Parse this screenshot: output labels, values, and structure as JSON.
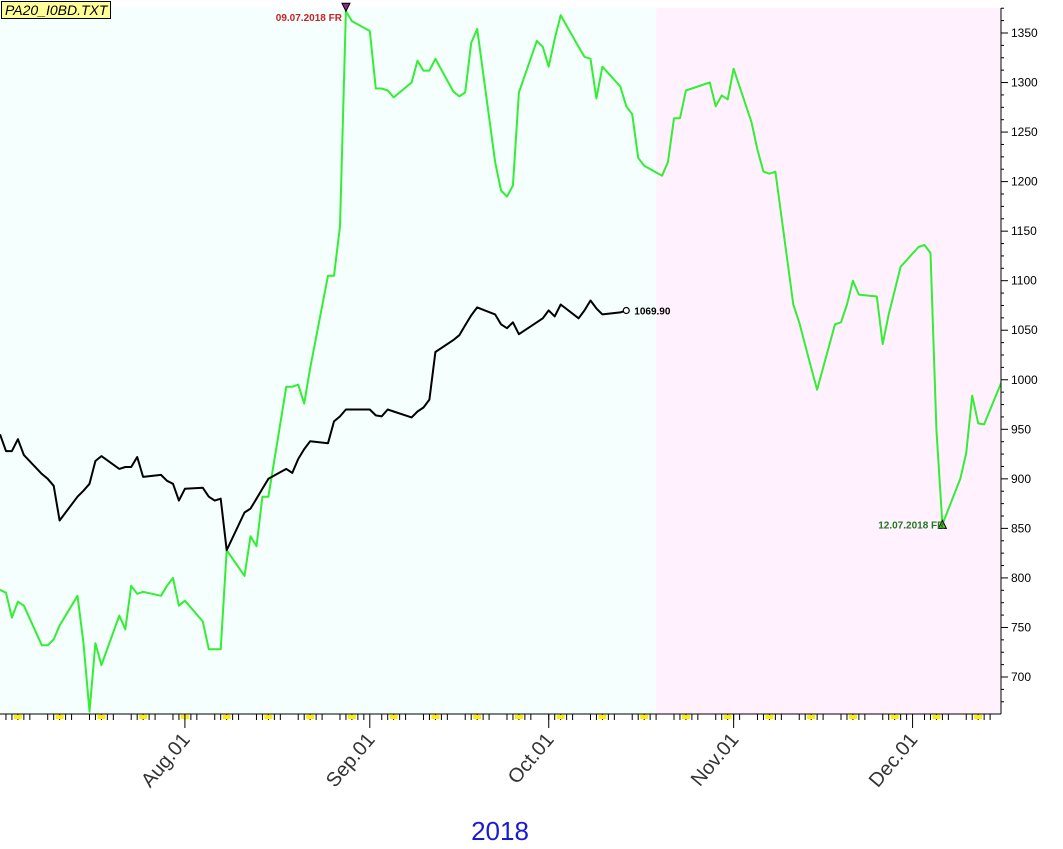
{
  "file_label": "PA20_I0BD.TXT",
  "year_label": "2018",
  "colors": {
    "green_series": "#33ee33",
    "black_series": "#000000",
    "shade_1": "#f4fffe",
    "shade_2": "#fff2fe",
    "marker_high": "#cc2222",
    "marker_low": "#227722",
    "year_text": "#1a1ad4",
    "tick_yellow": "#ffee00"
  },
  "chart_data": {
    "type": "line",
    "title": "",
    "xlabel": "2018",
    "ylabel": "",
    "ylim": [
      660,
      1375
    ],
    "y_ticks": [
      700,
      750,
      800,
      850,
      900,
      950,
      1000,
      1050,
      1100,
      1150,
      1200,
      1250,
      1300,
      1350
    ],
    "x_range": [
      "2018-07-01",
      "2018-12-17"
    ],
    "x_ticks": [
      {
        "date": "2018-08-01",
        "label": "Aug.01"
      },
      {
        "date": "2018-09-01",
        "label": "Sep.01"
      },
      {
        "date": "2018-10-01",
        "label": "Oct.01"
      },
      {
        "date": "2018-11-01",
        "label": "Nov.01"
      },
      {
        "date": "2018-12-01",
        "label": "Dec.01"
      }
    ],
    "shaded_periods": [
      {
        "start": "2018-07-01",
        "end": "2018-10-19",
        "color": "#f4fffe"
      },
      {
        "start": "2018-10-19",
        "end": "2018-12-17",
        "color": "#fff2fe"
      }
    ],
    "series": [
      {
        "color": "#33ee33",
        "points": [
          [
            "2018-07-01",
            788
          ],
          [
            "2018-07-02",
            785
          ],
          [
            "2018-07-03",
            760
          ],
          [
            "2018-07-04",
            776
          ],
          [
            "2018-07-05",
            772
          ],
          [
            "2018-07-08",
            732
          ],
          [
            "2018-07-09",
            732
          ],
          [
            "2018-07-10",
            738
          ],
          [
            "2018-07-11",
            752
          ],
          [
            "2018-07-14",
            782
          ],
          [
            "2018-07-15",
            734
          ],
          [
            "2018-07-16",
            665
          ],
          [
            "2018-07-17",
            734
          ],
          [
            "2018-07-18",
            712
          ],
          [
            "2018-07-21",
            762
          ],
          [
            "2018-07-22",
            748
          ],
          [
            "2018-07-23",
            792
          ],
          [
            "2018-07-24",
            784
          ],
          [
            "2018-07-25",
            786
          ],
          [
            "2018-07-28",
            782
          ],
          [
            "2018-07-29",
            792
          ],
          [
            "2018-07-30",
            800
          ],
          [
            "2018-07-31",
            772
          ],
          [
            "2018-08-01",
            777
          ],
          [
            "2018-08-04",
            756
          ],
          [
            "2018-08-05",
            728
          ],
          [
            "2018-08-06",
            728
          ],
          [
            "2018-08-07",
            728
          ],
          [
            "2018-08-08",
            828
          ],
          [
            "2018-08-11",
            802
          ],
          [
            "2018-08-12",
            842
          ],
          [
            "2018-08-13",
            832
          ],
          [
            "2018-08-14",
            882
          ],
          [
            "2018-08-15",
            882
          ],
          [
            "2018-08-18",
            993
          ],
          [
            "2018-08-19",
            993
          ],
          [
            "2018-08-20",
            995
          ],
          [
            "2018-08-21",
            976
          ],
          [
            "2018-08-22",
            1012
          ],
          [
            "2018-08-25",
            1105
          ],
          [
            "2018-08-26",
            1105
          ],
          [
            "2018-08-27",
            1155
          ],
          [
            "2018-08-28",
            1372
          ],
          [
            "2018-08-29",
            1362
          ],
          [
            "2018-09-01",
            1352
          ],
          [
            "2018-09-02",
            1294
          ],
          [
            "2018-09-03",
            1294
          ],
          [
            "2018-09-04",
            1292
          ],
          [
            "2018-09-05",
            1285
          ],
          [
            "2018-09-08",
            1300
          ],
          [
            "2018-09-09",
            1322
          ],
          [
            "2018-09-10",
            1312
          ],
          [
            "2018-09-11",
            1312
          ],
          [
            "2018-09-12",
            1324
          ],
          [
            "2018-09-15",
            1291
          ],
          [
            "2018-09-16",
            1286
          ],
          [
            "2018-09-17",
            1290
          ],
          [
            "2018-09-18",
            1340
          ],
          [
            "2018-09-19",
            1354
          ],
          [
            "2018-09-22",
            1220
          ],
          [
            "2018-09-23",
            1191
          ],
          [
            "2018-09-24",
            1185
          ],
          [
            "2018-09-25",
            1196
          ],
          [
            "2018-09-26",
            1290
          ],
          [
            "2018-09-29",
            1342
          ],
          [
            "2018-09-30",
            1336
          ],
          [
            "2018-10-01",
            1316
          ],
          [
            "2018-10-02",
            1344
          ],
          [
            "2018-10-03",
            1368
          ],
          [
            "2018-10-06",
            1336
          ],
          [
            "2018-10-07",
            1326
          ],
          [
            "2018-10-08",
            1324
          ],
          [
            "2018-10-09",
            1284
          ],
          [
            "2018-10-10",
            1316
          ],
          [
            "2018-10-13",
            1296
          ],
          [
            "2018-10-14",
            1276
          ],
          [
            "2018-10-15",
            1268
          ],
          [
            "2018-10-16",
            1224
          ],
          [
            "2018-10-17",
            1216
          ],
          [
            "2018-10-20",
            1206
          ],
          [
            "2018-10-21",
            1220
          ],
          [
            "2018-10-22",
            1264
          ],
          [
            "2018-10-23",
            1264
          ],
          [
            "2018-10-24",
            1292
          ],
          [
            "2018-10-27",
            1298
          ],
          [
            "2018-10-28",
            1300
          ],
          [
            "2018-10-29",
            1276
          ],
          [
            "2018-10-30",
            1287
          ],
          [
            "2018-10-31",
            1283
          ],
          [
            "2018-11-01",
            1314
          ],
          [
            "2018-11-04",
            1260
          ],
          [
            "2018-11-05",
            1232
          ],
          [
            "2018-11-06",
            1210
          ],
          [
            "2018-11-07",
            1208
          ],
          [
            "2018-11-08",
            1210
          ],
          [
            "2018-11-11",
            1076
          ],
          [
            "2018-11-12",
            1058
          ],
          [
            "2018-11-13",
            1035
          ],
          [
            "2018-11-14",
            1012
          ],
          [
            "2018-11-15",
            990
          ],
          [
            "2018-11-18",
            1056
          ],
          [
            "2018-11-19",
            1058
          ],
          [
            "2018-11-20",
            1076
          ],
          [
            "2018-11-21",
            1100
          ],
          [
            "2018-11-22",
            1086
          ],
          [
            "2018-11-25",
            1084
          ],
          [
            "2018-11-26",
            1036
          ],
          [
            "2018-11-27",
            1066
          ],
          [
            "2018-11-28",
            1090
          ],
          [
            "2018-11-29",
            1114
          ],
          [
            "2018-12-02",
            1134
          ],
          [
            "2018-12-03",
            1136
          ],
          [
            "2018-12-04",
            1128
          ],
          [
            "2018-12-05",
            950
          ],
          [
            "2018-12-06",
            854
          ],
          [
            "2018-12-09",
            900
          ],
          [
            "2018-12-10",
            926
          ],
          [
            "2018-12-11",
            984
          ],
          [
            "2018-12-12",
            956
          ],
          [
            "2018-12-13",
            955
          ],
          [
            "2018-12-16",
            999
          ],
          [
            "2018-12-17",
            1044
          ]
        ]
      },
      {
        "color": "#000000",
        "points": [
          [
            "2018-07-01",
            945
          ],
          [
            "2018-07-02",
            928
          ],
          [
            "2018-07-03",
            928
          ],
          [
            "2018-07-04",
            940
          ],
          [
            "2018-07-05",
            924
          ],
          [
            "2018-07-08",
            905
          ],
          [
            "2018-07-09",
            900
          ],
          [
            "2018-07-10",
            893
          ],
          [
            "2018-07-11",
            858
          ],
          [
            "2018-07-14",
            882
          ],
          [
            "2018-07-15",
            888
          ],
          [
            "2018-07-16",
            895
          ],
          [
            "2018-07-17",
            918
          ],
          [
            "2018-07-18",
            923
          ],
          [
            "2018-07-21",
            910
          ],
          [
            "2018-07-22",
            912
          ],
          [
            "2018-07-23",
            912
          ],
          [
            "2018-07-24",
            922
          ],
          [
            "2018-07-25",
            902
          ],
          [
            "2018-07-28",
            904
          ],
          [
            "2018-07-29",
            898
          ],
          [
            "2018-07-30",
            895
          ],
          [
            "2018-07-31",
            878
          ],
          [
            "2018-08-01",
            890
          ],
          [
            "2018-08-04",
            891
          ],
          [
            "2018-08-05",
            882
          ],
          [
            "2018-08-06",
            878
          ],
          [
            "2018-08-07",
            880
          ],
          [
            "2018-08-08",
            828
          ],
          [
            "2018-08-11",
            866
          ],
          [
            "2018-08-12",
            870
          ],
          [
            "2018-08-13",
            880
          ],
          [
            "2018-08-14",
            890
          ],
          [
            "2018-08-15",
            900
          ],
          [
            "2018-08-18",
            910
          ],
          [
            "2018-08-19",
            906
          ],
          [
            "2018-08-20",
            920
          ],
          [
            "2018-08-21",
            930
          ],
          [
            "2018-08-22",
            938
          ],
          [
            "2018-08-25",
            936
          ],
          [
            "2018-08-26",
            958
          ],
          [
            "2018-08-27",
            963
          ],
          [
            "2018-08-28",
            970
          ],
          [
            "2018-08-29",
            970
          ],
          [
            "2018-09-01",
            970
          ],
          [
            "2018-09-02",
            964
          ],
          [
            "2018-09-03",
            963
          ],
          [
            "2018-09-04",
            970
          ],
          [
            "2018-09-05",
            968
          ],
          [
            "2018-09-08",
            962
          ],
          [
            "2018-09-09",
            968
          ],
          [
            "2018-09-10",
            972
          ],
          [
            "2018-09-11",
            980
          ],
          [
            "2018-09-12",
            1028
          ],
          [
            "2018-09-15",
            1040
          ],
          [
            "2018-09-16",
            1045
          ],
          [
            "2018-09-17",
            1055
          ],
          [
            "2018-09-18",
            1065
          ],
          [
            "2018-09-19",
            1073
          ],
          [
            "2018-09-22",
            1066
          ],
          [
            "2018-09-23",
            1056
          ],
          [
            "2018-09-24",
            1052
          ],
          [
            "2018-09-25",
            1058
          ],
          [
            "2018-09-26",
            1046
          ],
          [
            "2018-09-29",
            1058
          ],
          [
            "2018-09-30",
            1062
          ],
          [
            "2018-10-01",
            1070
          ],
          [
            "2018-10-02",
            1064
          ],
          [
            "2018-10-03",
            1076
          ],
          [
            "2018-10-06",
            1062
          ],
          [
            "2018-10-07",
            1070
          ],
          [
            "2018-10-08",
            1080
          ],
          [
            "2018-10-09",
            1072
          ],
          [
            "2018-10-10",
            1066
          ],
          [
            "2018-10-13",
            1068
          ],
          [
            "2018-10-14",
            1069.9
          ]
        ]
      }
    ],
    "annotations": [
      {
        "date": "2018-08-28",
        "value": 1372,
        "text": "09.07.2018 FR",
        "type": "high",
        "color": "#cc2222"
      },
      {
        "date": "2018-12-06",
        "value": 854,
        "text": "12.07.2018 FR",
        "type": "low",
        "color": "#227722"
      },
      {
        "date": "2018-10-14",
        "value": 1069.9,
        "text": "1069.90",
        "type": "last",
        "color": "#000000"
      }
    ],
    "legend": "none",
    "grid": false
  }
}
